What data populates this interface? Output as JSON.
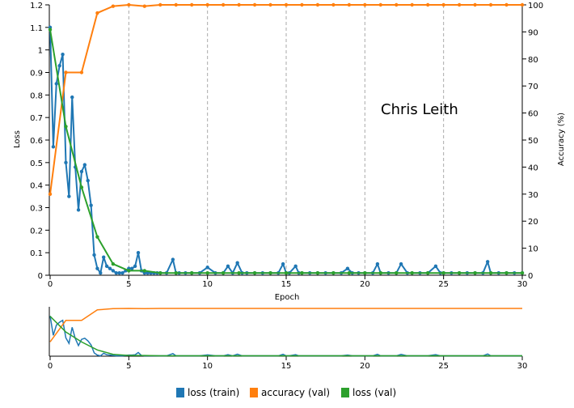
{
  "chart_data": {
    "type": "line",
    "annotation": "Chris Leith",
    "xlabel": "Epoch",
    "ylabel_left": "Loss",
    "ylabel_right": "Accuracy (%)",
    "xlim": [
      0,
      30
    ],
    "ylim_left": [
      0,
      1.2
    ],
    "ylim_right": [
      0,
      100
    ],
    "x_ticks": [
      0,
      5,
      10,
      15,
      20,
      25,
      30
    ],
    "y_ticks_left": [
      0,
      0.1,
      0.2,
      0.3,
      0.4,
      0.5,
      0.6,
      0.7,
      0.8,
      0.9,
      1,
      1.1,
      1.2
    ],
    "y_ticks_right": [
      0,
      10,
      20,
      30,
      40,
      50,
      60,
      70,
      80,
      90,
      100
    ],
    "grid": "vertical dashed at x ticks",
    "legend_position": "bottom-center",
    "overview_panel": true,
    "series": [
      {
        "name": "loss (train)",
        "axis": "left",
        "color": "#1f77b4",
        "x": [
          0,
          0.2,
          0.4,
          0.6,
          0.8,
          1.0,
          1.2,
          1.4,
          1.6,
          1.8,
          2.0,
          2.2,
          2.4,
          2.6,
          2.8,
          3.0,
          3.2,
          3.4,
          3.6,
          3.8,
          4.0,
          4.2,
          4.4,
          4.6,
          4.8,
          5.0,
          5.2,
          5.4,
          5.6,
          5.8,
          6.0,
          6.2,
          6.4,
          6.6,
          6.8,
          7.0,
          7.4,
          7.8,
          8.0,
          8.2,
          8.6,
          9.0,
          9.5,
          10.0,
          10.5,
          11.0,
          11.3,
          11.6,
          11.9,
          12.2,
          12.5,
          13.0,
          13.5,
          14.0,
          14.5,
          14.8,
          15.0,
          15.2,
          15.6,
          15.8,
          16.0,
          16.5,
          17.0,
          17.5,
          18.0,
          18.5,
          18.9,
          19.2,
          19.6,
          20.0,
          20.5,
          20.8,
          21.0,
          21.5,
          22.0,
          22.3,
          22.7,
          23.0,
          23.5,
          24.0,
          24.5,
          24.8,
          25.0,
          25.5,
          26.0,
          26.5,
          27.0,
          27.5,
          27.8,
          28.0,
          28.5,
          29.0,
          29.5,
          30.0
        ],
        "values": [
          1.1,
          0.57,
          0.85,
          0.93,
          0.98,
          0.5,
          0.35,
          0.79,
          0.48,
          0.29,
          0.46,
          0.49,
          0.42,
          0.31,
          0.09,
          0.03,
          0.01,
          0.08,
          0.04,
          0.03,
          0.02,
          0.01,
          0.01,
          0.01,
          0.02,
          0.03,
          0.03,
          0.04,
          0.1,
          0.02,
          0.01,
          0.01,
          0.01,
          0.01,
          0.01,
          0.01,
          0.01,
          0.07,
          0.01,
          0.01,
          0.01,
          0.01,
          0.01,
          0.035,
          0.01,
          0.01,
          0.04,
          0.01,
          0.055,
          0.01,
          0.01,
          0.01,
          0.01,
          0.01,
          0.01,
          0.05,
          0.01,
          0.01,
          0.04,
          0.01,
          0.01,
          0.01,
          0.01,
          0.01,
          0.01,
          0.01,
          0.03,
          0.01,
          0.01,
          0.01,
          0.01,
          0.05,
          0.01,
          0.01,
          0.01,
          0.05,
          0.01,
          0.01,
          0.01,
          0.01,
          0.04,
          0.01,
          0.01,
          0.01,
          0.01,
          0.01,
          0.01,
          0.01,
          0.06,
          0.01,
          0.01,
          0.01,
          0.01,
          0.01
        ]
      },
      {
        "name": "accuracy (val)",
        "axis": "right",
        "color": "#ff7f0e",
        "x": [
          0,
          1,
          2,
          3,
          4,
          5,
          6,
          7,
          8,
          9,
          10,
          11,
          12,
          13,
          14,
          15,
          16,
          17,
          18,
          19,
          20,
          21,
          22,
          23,
          24,
          25,
          26,
          27,
          28,
          29,
          30
        ],
        "values": [
          30,
          75,
          75,
          97,
          99.5,
          100,
          99.5,
          100,
          100,
          100,
          100,
          100,
          100,
          100,
          100,
          100,
          100,
          100,
          100,
          100,
          100,
          100,
          100,
          100,
          100,
          100,
          100,
          100,
          100,
          100,
          100
        ]
      },
      {
        "name": "loss (val)",
        "axis": "left",
        "color": "#2ca02c",
        "x": [
          0,
          1,
          2,
          3,
          4,
          5,
          6,
          7,
          8,
          9,
          10,
          11,
          12,
          13,
          14,
          15,
          16,
          17,
          18,
          19,
          20,
          21,
          22,
          23,
          24,
          25,
          26,
          27,
          28,
          29,
          30
        ],
        "values": [
          1.09,
          0.66,
          0.39,
          0.17,
          0.05,
          0.02,
          0.02,
          0.01,
          0.01,
          0.01,
          0.01,
          0.01,
          0.01,
          0.01,
          0.01,
          0.01,
          0.01,
          0.01,
          0.01,
          0.01,
          0.01,
          0.01,
          0.01,
          0.01,
          0.01,
          0.01,
          0.01,
          0.01,
          0.01,
          0.01,
          0.01
        ]
      }
    ]
  }
}
